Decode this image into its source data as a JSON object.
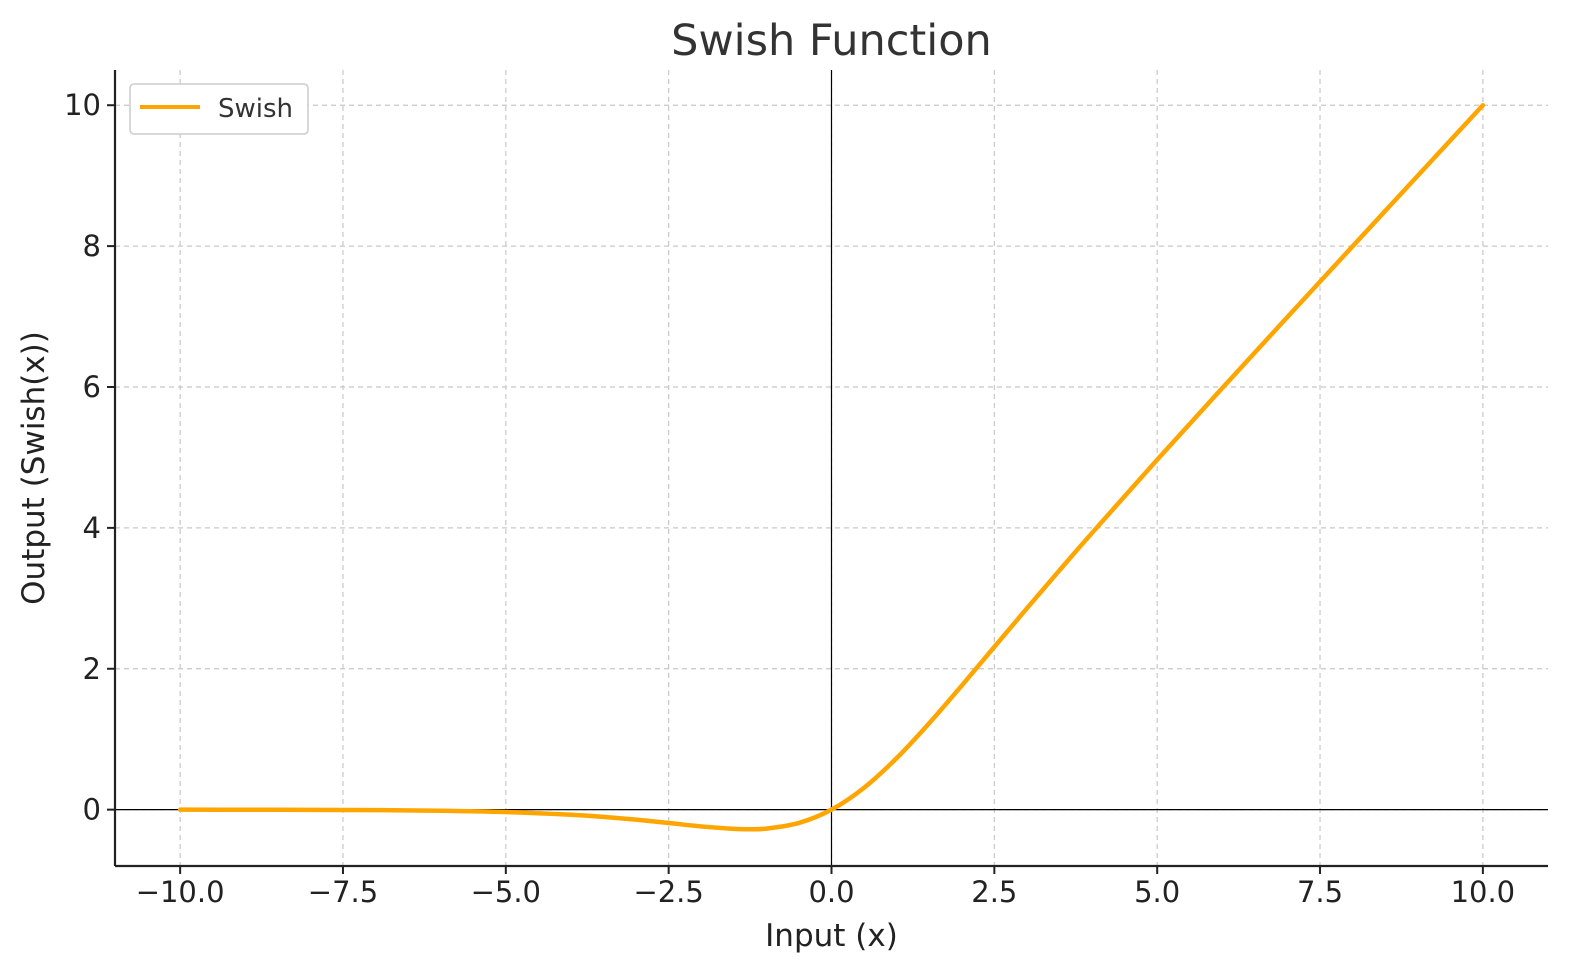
{
  "chart_data": {
    "type": "line",
    "title": "Swish Function",
    "xlabel": "Input (x)",
    "ylabel": "Output (Swish(x))",
    "xlim": [
      -11,
      11
    ],
    "ylim": [
      -0.8,
      10.5
    ],
    "xticks": [
      -10.0,
      -7.5,
      -5.0,
      -2.5,
      0.0,
      2.5,
      5.0,
      7.5,
      10.0
    ],
    "xtick_labels": [
      "−10.0",
      "−7.5",
      "−5.0",
      "−2.5",
      "0.0",
      "2.5",
      "5.0",
      "7.5",
      "10.0"
    ],
    "yticks": [
      0,
      2,
      4,
      6,
      8,
      10
    ],
    "ytick_labels": [
      "0",
      "2",
      "4",
      "6",
      "8",
      "10"
    ],
    "grid": true,
    "legend_position": "top-left",
    "reference_lines": {
      "x": 0,
      "y": 0
    },
    "series": [
      {
        "name": "Swish",
        "color": "#FFA500",
        "x": [
          -10,
          -9,
          -8,
          -7,
          -6,
          -5,
          -4,
          -3.5,
          -3,
          -2.5,
          -2,
          -1.5,
          -1.28,
          -1,
          -0.5,
          0,
          0.5,
          1,
          1.5,
          2,
          2.5,
          3,
          3.5,
          4,
          5,
          6,
          7,
          8,
          9,
          10
        ],
        "y": [
          -0.0005,
          -0.0011,
          -0.0027,
          -0.0064,
          -0.0148,
          -0.0335,
          -0.0719,
          -0.1027,
          -0.1423,
          -0.1892,
          -0.2384,
          -0.2731,
          -0.2785,
          -0.2689,
          -0.1888,
          0,
          0.3112,
          0.7311,
          1.2266,
          1.7616,
          2.3108,
          2.8577,
          3.3973,
          3.9281,
          4.9665,
          5.9852,
          6.9936,
          7.9973,
          8.9989,
          9.9995
        ]
      }
    ]
  }
}
